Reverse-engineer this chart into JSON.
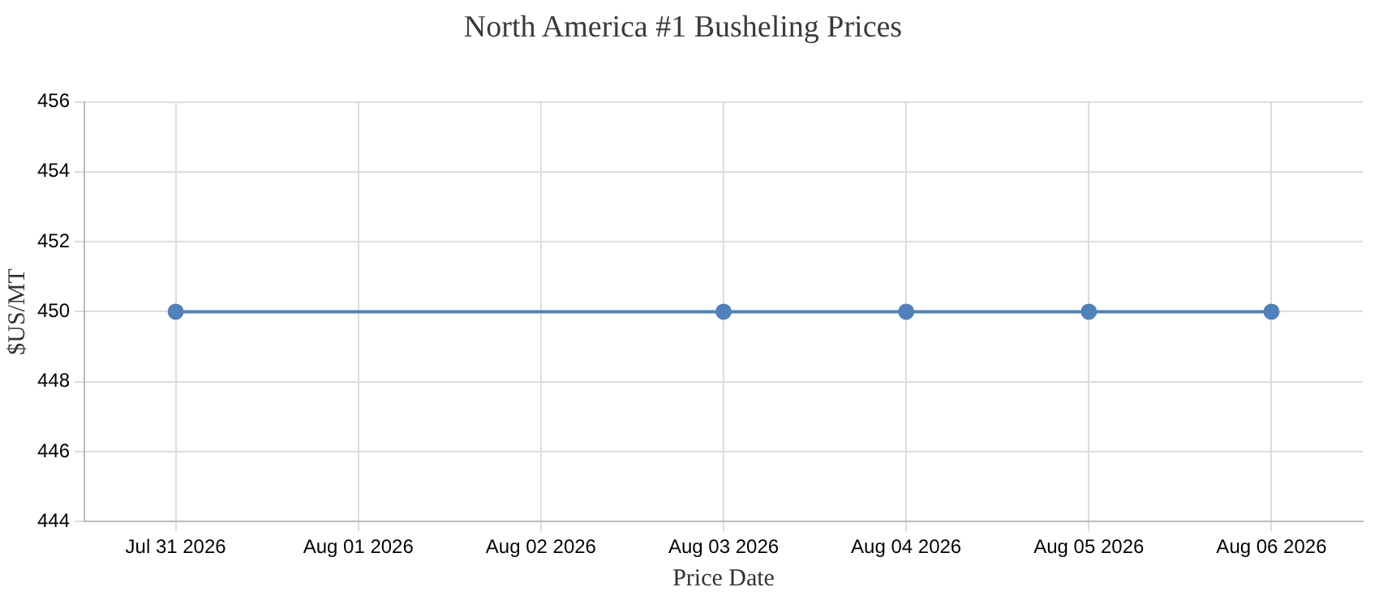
{
  "chart_data": {
    "type": "line",
    "title": "North America #1 Busheling Prices",
    "xlabel": "Price Date",
    "ylabel": "$US/MT",
    "x": [
      "2026-07-31",
      "2026-08-03",
      "2026-08-04",
      "2026-08-05",
      "2026-08-06"
    ],
    "series": [
      {
        "color": "#4f81bc",
        "values": [
          450,
          450,
          450,
          450,
          450
        ]
      }
    ],
    "xlim": [
      "2026-07-30T12:00",
      "2026-08-06T12:00"
    ],
    "xticks": [
      {
        "value": "2026-07-31",
        "label": "Jul 31 2026"
      },
      {
        "value": "2026-08-01",
        "label": "Aug 01 2026"
      },
      {
        "value": "2026-08-02",
        "label": "Aug 02 2026"
      },
      {
        "value": "2026-08-03",
        "label": "Aug 03 2026"
      },
      {
        "value": "2026-08-04",
        "label": "Aug 04 2026"
      },
      {
        "value": "2026-08-05",
        "label": "Aug 05 2026"
      },
      {
        "value": "2026-08-06",
        "label": "Aug 06 2026"
      }
    ],
    "ylim": [
      444,
      456
    ],
    "yticks": [
      444,
      446,
      448,
      450,
      452,
      454,
      456
    ],
    "grid": true,
    "legend": false,
    "marker": "circle",
    "line_style": "solid"
  }
}
